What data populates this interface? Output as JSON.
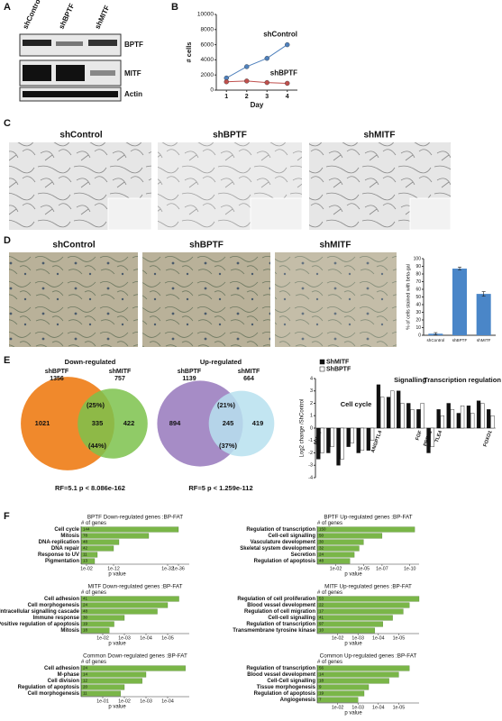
{
  "panel_labels": [
    "A",
    "B",
    "C",
    "D",
    "E",
    "F"
  ],
  "blot": {
    "lanes": [
      "shControl",
      "shBPTF",
      "shMITF"
    ],
    "proteins": [
      "BPTF",
      "MITF",
      "Actin"
    ]
  },
  "micrographs_c": {
    "titles": [
      "shControl",
      "shBPTF",
      "shMITF"
    ]
  },
  "micrographs_d": {
    "titles": [
      "shControl",
      "shBPTF",
      "shMITF"
    ]
  },
  "venn": [
    {
      "title": "Down-regulated",
      "left_name": "shBPTF",
      "left_total": 1356,
      "right_name": "shMITF",
      "right_total": 757,
      "left_only": 1021,
      "overlap": 335,
      "right_only": 422,
      "overlap_pct_left": "(25%)",
      "overlap_pct_right": "(44%)",
      "stats": "RF=5.1 p < 8.086e-162",
      "left_color": "#f0892c",
      "right_color": "#7cc24c"
    },
    {
      "title": "Up-regulated",
      "left_name": "shBPTF",
      "left_total": 1139,
      "right_name": "shMITF",
      "right_total": 664,
      "left_only": 894,
      "overlap": 245,
      "right_only": 419,
      "overlap_pct_left": "(21%)",
      "overlap_pct_right": "(37%)",
      "stats": "RF=5 p < 1.259e-112",
      "left_color": "#a68cc6",
      "right_color": "#b7e1ee"
    }
  ],
  "chart_data": [
    {
      "type": "line",
      "x": [
        1,
        2,
        3,
        4
      ],
      "xlim": [
        0.5,
        4.5
      ],
      "xticks": [
        1,
        2,
        3,
        4
      ],
      "ylim": [
        0,
        10000
      ],
      "yticks": [
        0,
        2000,
        4000,
        6000,
        8000,
        10000
      ],
      "xlabel": "Day",
      "ylabel": "# cells",
      "series": [
        {
          "name": "shControl",
          "color": "#4f81bd",
          "values": [
            1600,
            3100,
            4200,
            6000
          ]
        },
        {
          "name": "shBPTF",
          "color": "#c0504d",
          "values": [
            1100,
            1200,
            1000,
            900
          ]
        }
      ]
    },
    {
      "type": "bar",
      "categories": [
        "shControl",
        "shBPTF",
        "shMITF"
      ],
      "values": [
        2,
        87,
        54
      ],
      "errors": [
        1.5,
        2,
        3
      ],
      "color": "#4a86c8",
      "ylim": [
        0,
        100
      ],
      "yticks": [
        0,
        10,
        20,
        30,
        40,
        50,
        60,
        70,
        80,
        90,
        100
      ],
      "ylabel": "% of cells stained with beta-gal"
    },
    {
      "type": "grouped-bar",
      "ylabel": "Log2 change /ShControl",
      "ylim": [
        -4,
        4
      ],
      "yticks": [
        -4,
        -3,
        -2,
        -1,
        0,
        1,
        2,
        3,
        4
      ],
      "annotations": [
        "Cell cycle",
        "Signalling",
        "Transcription regulation"
      ],
      "categories": [
        "MKI67",
        null,
        null,
        null,
        null,
        null,
        "ANGPTL4",
        null,
        null,
        null,
        "FGF",
        "PREX1",
        "TLE4",
        null,
        null,
        null,
        null,
        "FOXO1"
      ],
      "series": [
        {
          "name": "ShMITF",
          "color": "#111111",
          "values": [
            -2.5,
            -2,
            -3,
            -1.5,
            -2,
            -1.8,
            3.5,
            2.5,
            3,
            2,
            1.5,
            -2,
            1.5,
            2,
            1.2,
            1.8,
            2.2,
            1.5
          ]
        },
        {
          "name": "ShBPTF",
          "color": "#ffffff",
          "values": [
            -2,
            -1.5,
            -2.5,
            -1.2,
            -1.8,
            -1,
            2.5,
            3,
            2,
            1.5,
            2,
            -1.5,
            1,
            1.5,
            1.8,
            1.2,
            2,
            1
          ]
        }
      ]
    },
    {
      "type": "barh",
      "log_x": true,
      "title": "BPTF Down-regulated genes :BP-FAT",
      "count_header": "# of genes",
      "xlabel": "p value",
      "color": "#7ab648",
      "categories": [
        "Cell cycle",
        "Mitosis",
        "DNA-replication",
        "DNA repair",
        "Response to UV",
        "Pigmentation"
      ],
      "values": [
        1e-36,
        1e-25,
        1e-14,
        1e-12,
        1e-06,
        1e-05
      ],
      "gene_counts": [
        144,
        78,
        48,
        42,
        11,
        13
      ],
      "xlim": [
        1,
        1e-40
      ],
      "xticks": [
        {
          "value": 0.01,
          "label": "1e-02"
        },
        {
          "value": 1e-12,
          "label": "1e-12"
        },
        {
          "value": 1e-32,
          "label": "1e-32"
        },
        {
          "value": 1e-36,
          "label": "1e-36"
        }
      ]
    },
    {
      "type": "barh",
      "log_x": true,
      "title": "BPTF Up-regulated genes :BP-FAT",
      "count_header": "# of genes",
      "xlabel": "p value",
      "color": "#7ab648",
      "categories": [
        "Regulation of transcription",
        "Cell-cell signalling",
        "Vasculature development",
        "Skeletal system development",
        "Secretion",
        "Regulation of apoptosis"
      ],
      "values": [
        3e-11,
        1e-07,
        1e-05,
        3e-05,
        0.0001,
        0.0003
      ],
      "gene_counts": [
        150,
        50,
        30,
        32,
        24,
        48
      ],
      "xlim": [
        1,
        1e-11
      ],
      "xticks": [
        {
          "value": 0.01,
          "label": "1e-02"
        },
        {
          "value": 1e-05,
          "label": "1e-05"
        },
        {
          "value": 1e-07,
          "label": "1e-07"
        },
        {
          "value": 1e-10,
          "label": "1e-10"
        }
      ]
    },
    {
      "type": "barh",
      "log_x": true,
      "title": "MITF Down-regulated genes :BP-FAT",
      "count_header": "# of genes",
      "xlabel": "p value",
      "color": "#7ab648",
      "categories": [
        "Cell adhesion",
        "Cell morphogenesis",
        "Intracellular signalling cascade",
        "Immune response",
        "Positive regulation of apoptosis",
        "Mitosis"
      ],
      "values": [
        3e-06,
        1e-05,
        3e-05,
        0.001,
        0.003,
        0.005
      ],
      "gene_counts": [
        41,
        24,
        48,
        30,
        19,
        18
      ],
      "xlim": [
        0.1,
        1e-06
      ],
      "xticks": [
        {
          "value": 0.01,
          "label": "1e-02"
        },
        {
          "value": 0.001,
          "label": "1e-03"
        },
        {
          "value": 0.0001,
          "label": "1e-04"
        },
        {
          "value": 1e-05,
          "label": "1e-05"
        }
      ]
    },
    {
      "type": "barh",
      "log_x": true,
      "title": "MITF Up-regulated genes :BP-FAT",
      "count_header": "# of genes",
      "xlabel": "p value",
      "color": "#7ab648",
      "categories": [
        "Regulation of cell proliferation",
        "Blood vessel development",
        "Regulation of cell migration",
        "Cell-cell signalling",
        "Regulation of transcription",
        "Transmembrane tyrosine kinase"
      ],
      "values": [
        1e-06,
        3e-06,
        6e-06,
        2e-05,
        6e-05,
        0.00015
      ],
      "gene_counts": [
        53,
        22,
        17,
        41,
        97,
        10
      ],
      "xlim": [
        0.1,
        1e-06
      ],
      "xticks": [
        {
          "value": 0.01,
          "label": "1e-02"
        },
        {
          "value": 0.001,
          "label": "1e-03"
        },
        {
          "value": 0.0001,
          "label": "1e-04"
        },
        {
          "value": 1e-05,
          "label": "1e-05"
        }
      ]
    },
    {
      "type": "barh",
      "log_x": true,
      "title": "Common Down-regulated genes :BP-FAT",
      "count_header": "# of genes",
      "xlabel": "p value",
      "color": "#7ab648",
      "categories": [
        "Cell adhesion",
        "M-phase",
        "Cell division",
        "Regulation of apoptosis",
        "Cell morphogenesis"
      ],
      "values": [
        1.5e-05,
        0.001,
        0.0015,
        0.01,
        0.015
      ],
      "gene_counts": [
        24,
        14,
        12,
        20,
        11
      ],
      "xlim": [
        1,
        1e-05
      ],
      "xticks": [
        {
          "value": 0.1,
          "label": "1e-01"
        },
        {
          "value": 0.01,
          "label": "1e-02"
        },
        {
          "value": 0.001,
          "label": "1e-03"
        },
        {
          "value": 0.0001,
          "label": "1e-04"
        }
      ]
    },
    {
      "type": "barh",
      "log_x": true,
      "title": "Common Up-regulated genes :BP-FAT",
      "count_header": "# of genes",
      "xlabel": "p value",
      "color": "#7ab648",
      "categories": [
        "Regulation of transcription",
        "Blood vessel development",
        "Cell-Cell signalling",
        "Tissue morphogenesis",
        "Regulation of apoptosis",
        "Angiogenesis"
      ],
      "values": [
        3e-06,
        1e-05,
        3e-05,
        0.0003,
        0.0005,
        0.001
      ],
      "gene_counts": [
        56,
        14,
        18,
        9,
        19,
        7
      ],
      "xlim": [
        0.1,
        1e-06
      ],
      "xticks": [
        {
          "value": 0.01,
          "label": "1e-02"
        },
        {
          "value": 0.001,
          "label": "1e-03"
        },
        {
          "value": 0.0001,
          "label": "1e-04"
        },
        {
          "value": 1e-05,
          "label": "1e-05"
        }
      ]
    }
  ]
}
